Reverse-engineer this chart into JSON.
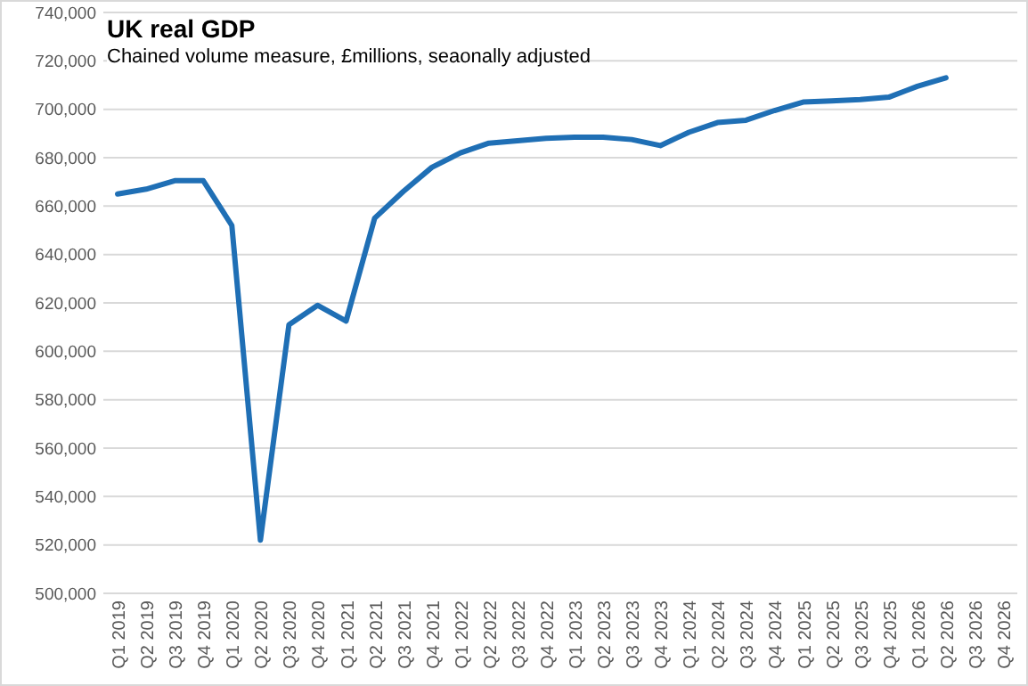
{
  "chart_data": {
    "type": "line",
    "title": "UK real GDP",
    "subtitle": "Chained volume measure, £millions, seaonally adjusted",
    "categories": [
      "Q1 2019",
      "Q2 2019",
      "Q3 2019",
      "Q4 2019",
      "Q1 2020",
      "Q2 2020",
      "Q3 2020",
      "Q4 2020",
      "Q1 2021",
      "Q2 2021",
      "Q3 2021",
      "Q4 2021",
      "Q1 2022",
      "Q2 2022",
      "Q3 2022",
      "Q4 2022",
      "Q1 2023",
      "Q2 2023",
      "Q3 2023",
      "Q4 2023",
      "Q1 2024",
      "Q2 2024",
      "Q3 2024",
      "Q4 2024",
      "Q1 2025",
      "Q2 2025",
      "Q3 2025",
      "Q4 2025",
      "Q1 2026",
      "Q2 2026",
      "Q3 2026",
      "Q4 2026"
    ],
    "series": [
      {
        "color": "#1f6fb5",
        "values": [
          665000,
          667000,
          670500,
          670500,
          652000,
          522000,
          611000,
          619000,
          612500,
          655000,
          666000,
          676000,
          682000,
          686000,
          687000,
          688000,
          688500,
          688500,
          687500,
          685000,
          690500,
          694500,
          695500,
          699500,
          703000,
          703500,
          704000,
          705000,
          709500,
          713000,
          null,
          null
        ]
      }
    ],
    "ylim": [
      500000,
      740000
    ],
    "yticks": [
      {
        "value": 500000,
        "label": "500,000"
      },
      {
        "value": 520000,
        "label": "520,000"
      },
      {
        "value": 540000,
        "label": "540,000"
      },
      {
        "value": 560000,
        "label": "560,000"
      },
      {
        "value": 580000,
        "label": "580,000"
      },
      {
        "value": 600000,
        "label": "600,000"
      },
      {
        "value": 620000,
        "label": "620,000"
      },
      {
        "value": 640000,
        "label": "640,000"
      },
      {
        "value": 660000,
        "label": "660,000"
      },
      {
        "value": 680000,
        "label": "680,000"
      },
      {
        "value": 700000,
        "label": "700,000"
      },
      {
        "value": 720000,
        "label": "720,000"
      },
      {
        "value": 740000,
        "label": "740,000"
      }
    ],
    "grid": "y",
    "marker": "none",
    "line_style": "solid"
  }
}
